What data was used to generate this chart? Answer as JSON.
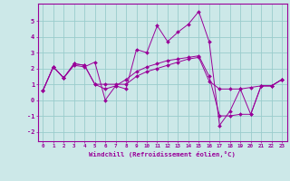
{
  "x": [
    0,
    1,
    2,
    3,
    4,
    5,
    6,
    7,
    8,
    9,
    10,
    11,
    12,
    13,
    14,
    15,
    16,
    17,
    18,
    19,
    20,
    21,
    22,
    23
  ],
  "line1": [
    0.6,
    2.1,
    1.4,
    2.2,
    2.1,
    2.4,
    0.0,
    0.9,
    0.7,
    3.2,
    3.0,
    4.7,
    3.7,
    4.3,
    4.8,
    5.6,
    3.7,
    -1.6,
    -0.7,
    0.7,
    -0.9,
    0.9,
    0.9,
    1.3
  ],
  "line2": [
    0.6,
    2.1,
    1.4,
    2.3,
    2.2,
    1.0,
    1.0,
    1.0,
    1.0,
    1.5,
    1.8,
    2.0,
    2.2,
    2.4,
    2.6,
    2.7,
    1.2,
    0.7,
    0.7,
    0.7,
    0.8,
    0.9,
    0.9,
    1.3
  ],
  "line3": [
    0.6,
    2.1,
    1.4,
    2.3,
    2.2,
    1.0,
    0.7,
    0.9,
    1.3,
    1.8,
    2.1,
    2.3,
    2.5,
    2.6,
    2.7,
    2.8,
    1.5,
    -1.0,
    -1.0,
    -0.9,
    -0.9,
    0.9,
    0.9,
    1.3
  ],
  "line_color": "#990099",
  "bg_color": "#cce8e8",
  "grid_color": "#99cccc",
  "tick_color": "#990099",
  "xlabel": "Windchill (Refroidissement éolien,°C)",
  "xlim": [
    -0.5,
    23.5
  ],
  "ylim": [
    -2.6,
    6.1
  ],
  "yticks": [
    -2,
    -1,
    0,
    1,
    2,
    3,
    4,
    5
  ],
  "xticks": [
    0,
    1,
    2,
    3,
    4,
    5,
    6,
    7,
    8,
    9,
    10,
    11,
    12,
    13,
    14,
    15,
    16,
    17,
    18,
    19,
    20,
    21,
    22,
    23
  ]
}
